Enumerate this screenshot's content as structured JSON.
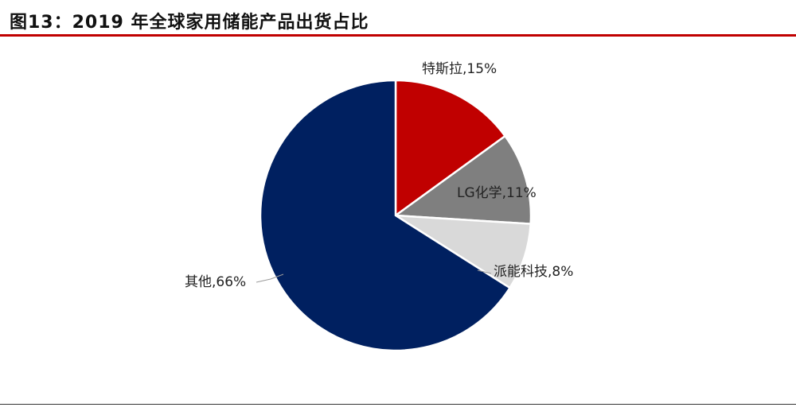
{
  "figure": {
    "title": "图13：2019 年全球家用储能产品出货占比",
    "rule_color": "#c00000"
  },
  "chart_data": {
    "type": "pie",
    "title": "",
    "start_angle_deg": 0,
    "direction": "clockwise",
    "slices": [
      {
        "name": "特斯拉",
        "value": 15,
        "label": "特斯拉,15%",
        "color": "#c00000"
      },
      {
        "name": "LG化学",
        "value": 11,
        "label": "LG化学,11%",
        "color": "#7f7f7f"
      },
      {
        "name": "派能科技",
        "value": 8,
        "label": "派能科技,8%",
        "color": "#d9d9d9"
      },
      {
        "name": "其他",
        "value": 66,
        "label": "其他,66%",
        "color": "#002060"
      }
    ]
  }
}
